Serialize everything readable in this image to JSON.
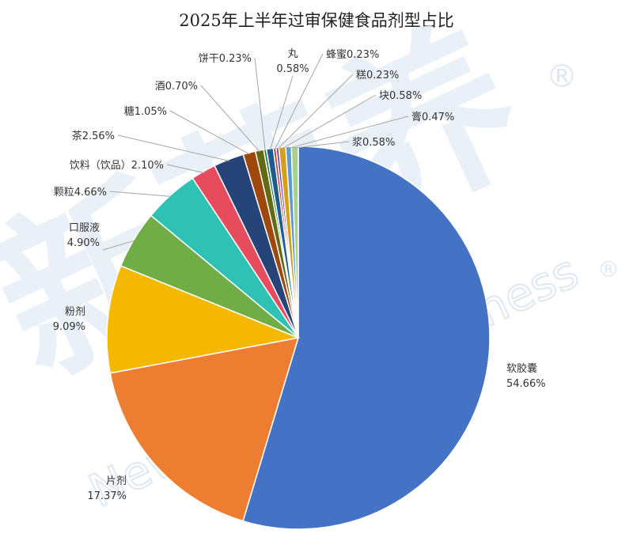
{
  "chart_data": {
    "type": "pie",
    "title": "2025年上半年过审保健食品剂型占比",
    "slices": [
      {
        "label": "软胶囊",
        "value": 54.66,
        "display": "54.66%",
        "color": "#4472C4"
      },
      {
        "label": "片剂",
        "value": 17.37,
        "display": "17.37%",
        "color": "#ED7D31"
      },
      {
        "label": "粉剂",
        "value": 9.09,
        "display": "9.09%",
        "color": "#F5B800"
      },
      {
        "label": "口服液",
        "value": 4.9,
        "display": "4.90%",
        "color": "#70AD47"
      },
      {
        "label": "颗粒",
        "value": 4.66,
        "display": "4.66%",
        "color": "#2EC1B4"
      },
      {
        "label": "饮料（饮品）",
        "value": 2.1,
        "display": "2.10%",
        "color": "#E64B5E"
      },
      {
        "label": "茶",
        "value": 2.56,
        "display": "2.56%",
        "color": "#264478"
      },
      {
        "label": "糖",
        "value": 1.05,
        "display": "1.05%",
        "color": "#9E480E"
      },
      {
        "label": "酒",
        "value": 0.7,
        "display": "0.70%",
        "color": "#636B12"
      },
      {
        "label": "饼干",
        "value": 0.23,
        "display": "0.23%",
        "color": "#1D7A4F"
      },
      {
        "label": "丸",
        "value": 0.58,
        "display": "0.58%",
        "color": "#1E5C8C"
      },
      {
        "label": "蜂蜜",
        "value": 0.23,
        "display": "0.23%",
        "color": "#C0392B"
      },
      {
        "label": "糕",
        "value": 0.23,
        "display": "0.23%",
        "color": "#7B3FA0"
      },
      {
        "label": "块",
        "value": 0.58,
        "display": "0.58%",
        "color": "#D4A017"
      },
      {
        "label": "膏",
        "value": 0.47,
        "display": "0.47%",
        "color": "#5B9BD5"
      },
      {
        "label": "浆",
        "value": 0.58,
        "display": "0.58%",
        "color": "#A9D18E"
      }
    ],
    "legend": "none"
  },
  "watermark": {
    "brand": "新营养",
    "english": "New Nutrition Business",
    "registered_mark": "®"
  }
}
